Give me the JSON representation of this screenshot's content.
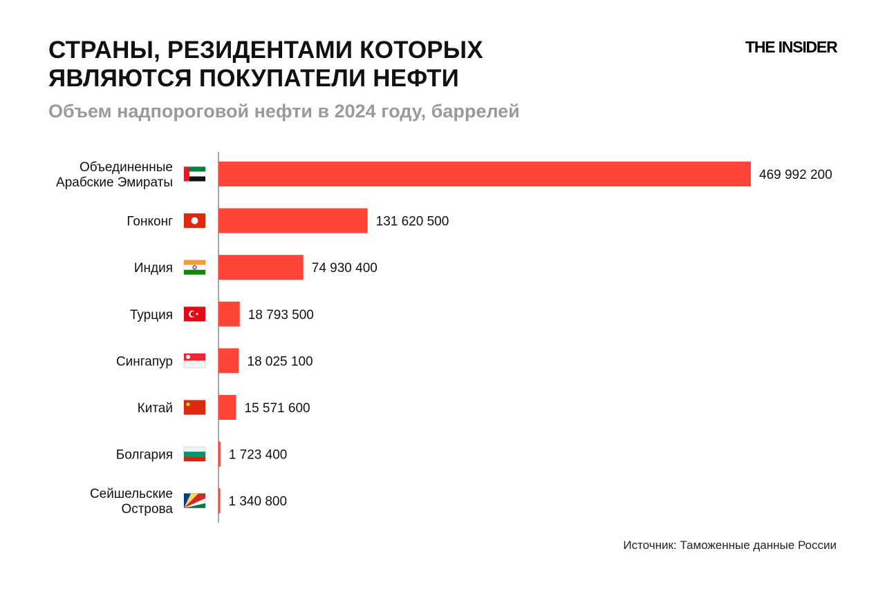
{
  "title_lines": [
    "СТРАНЫ, РЕЗИДЕНТАМИ КОТОРЫХ",
    "ЯВЛЯЮТСЯ ПОКУПАТЕЛИ НЕФТИ"
  ],
  "subtitle": "Объем надпороговой нефти в 2024 году, баррелей",
  "logo": "THE INSIDER",
  "source": "Источник: Таможенные данные России",
  "colors": {
    "bar": "#ff4538",
    "axis": "#888888"
  },
  "chart_data": {
    "type": "bar",
    "orientation": "horizontal",
    "title": "СТРАНЫ, РЕЗИДЕНТАМИ КОТОРЫХ ЯВЛЯЮТСЯ ПОКУПАТЕЛИ НЕФТИ",
    "subtitle": "Объем надпороговой нефти в 2024 году, баррелей",
    "categories": [
      [
        "Объединенные",
        "Арабские Эмираты"
      ],
      [
        "Гонконг"
      ],
      [
        "Индия"
      ],
      [
        "Турция"
      ],
      [
        "Сингапур"
      ],
      [
        "Китай"
      ],
      [
        "Болгария"
      ],
      [
        "Сейшельские",
        "Острова"
      ]
    ],
    "flags": [
      "uae-flag",
      "hong-kong-flag",
      "india-flag",
      "turkey-flag",
      "singapore-flag",
      "china-flag",
      "bulgaria-flag",
      "seychelles-flag"
    ],
    "values": [
      469992200,
      131620500,
      74930400,
      18793500,
      18025100,
      15571600,
      1723400,
      1340800
    ],
    "value_labels": [
      "469 992 200",
      "131 620 500",
      "74 930 400",
      "18 793 500",
      "18 025 100",
      "15 571 600",
      "1 723 400",
      "1 340 800"
    ],
    "xlim": [
      0,
      469992200
    ],
    "grid": false,
    "legend": "none"
  }
}
